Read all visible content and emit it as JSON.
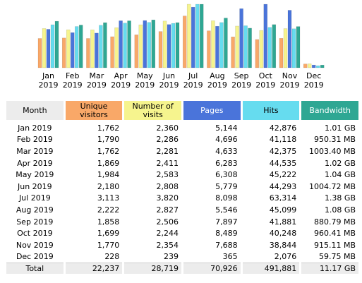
{
  "colors": {
    "unique_visitors": "#f9a868",
    "visits": "#f6f48e",
    "pages": "#4a74da",
    "hits": "#66dcef",
    "bandwidth": "#2ea793",
    "month_header": "#ececec"
  },
  "chart_data": {
    "type": "bar",
    "categories": [
      "Jan 2019",
      "Feb 2019",
      "Mar 2019",
      "Apr 2019",
      "May 2019",
      "Jun 2019",
      "Jul 2019",
      "Aug 2019",
      "Sep 2019",
      "Oct 2019",
      "Nov 2019",
      "Dec 2019"
    ],
    "category_lines": [
      [
        "Jan",
        "2019"
      ],
      [
        "Feb",
        "2019"
      ],
      [
        "Mar",
        "2019"
      ],
      [
        "Apr",
        "2019"
      ],
      [
        "May",
        "2019"
      ],
      [
        "Jun",
        "2019"
      ],
      [
        "Jul",
        "2019"
      ],
      [
        "Aug",
        "2019"
      ],
      [
        "Sep",
        "2019"
      ],
      [
        "Oct",
        "2019"
      ],
      [
        "Nov",
        "2019"
      ],
      [
        "Dec",
        "2019"
      ]
    ],
    "series": [
      {
        "name": "Unique visitors",
        "values": [
          1762,
          1790,
          1762,
          1869,
          1984,
          2180,
          3113,
          2222,
          1858,
          1699,
          1770,
          228
        ]
      },
      {
        "name": "Number of visits",
        "values": [
          2360,
          2286,
          2281,
          2411,
          2583,
          2808,
          3820,
          2827,
          2506,
          2244,
          2354,
          239
        ]
      },
      {
        "name": "Pages",
        "values": [
          5144,
          4696,
          4633,
          6283,
          6308,
          5779,
          8098,
          5546,
          7897,
          8489,
          7688,
          365
        ]
      },
      {
        "name": "Hits",
        "values": [
          42876,
          41118,
          42375,
          44535,
          45222,
          44293,
          63314,
          45099,
          41881,
          40248,
          38844,
          2076
        ]
      },
      {
        "name": "Bandwidth",
        "values": [
          1.01,
          0.928,
          0.98,
          1.02,
          1.04,
          0.981,
          1.38,
          1.08,
          0.86,
          0.938,
          0.895,
          0.058
        ]
      }
    ],
    "title": "",
    "xlabel": "",
    "ylabel": "",
    "grid": false,
    "legend": "none"
  },
  "table": {
    "headers": {
      "month": "Month",
      "unique": [
        "Unique",
        "visitors"
      ],
      "visits": [
        "Number of",
        "visits"
      ],
      "pages": "Pages",
      "hits": "Hits",
      "bandwidth": "Bandwidth"
    },
    "rows": [
      {
        "month": "Jan 2019",
        "unique": "1,762",
        "visits": "2,360",
        "pages": "5,144",
        "hits": "42,876",
        "bandwidth": "1.01 GB"
      },
      {
        "month": "Feb 2019",
        "unique": "1,790",
        "visits": "2,286",
        "pages": "4,696",
        "hits": "41,118",
        "bandwidth": "950.31 MB"
      },
      {
        "month": "Mar 2019",
        "unique": "1,762",
        "visits": "2,281",
        "pages": "4,633",
        "hits": "42,375",
        "bandwidth": "1003.40 MB"
      },
      {
        "month": "Apr 2019",
        "unique": "1,869",
        "visits": "2,411",
        "pages": "6,283",
        "hits": "44,535",
        "bandwidth": "1.02 GB"
      },
      {
        "month": "May 2019",
        "unique": "1,984",
        "visits": "2,583",
        "pages": "6,308",
        "hits": "45,222",
        "bandwidth": "1.04 GB"
      },
      {
        "month": "Jun 2019",
        "unique": "2,180",
        "visits": "2,808",
        "pages": "5,779",
        "hits": "44,293",
        "bandwidth": "1004.72 MB"
      },
      {
        "month": "Jul 2019",
        "unique": "3,113",
        "visits": "3,820",
        "pages": "8,098",
        "hits": "63,314",
        "bandwidth": "1.38 GB"
      },
      {
        "month": "Aug 2019",
        "unique": "2,222",
        "visits": "2,827",
        "pages": "5,546",
        "hits": "45,099",
        "bandwidth": "1.08 GB"
      },
      {
        "month": "Sep 2019",
        "unique": "1,858",
        "visits": "2,506",
        "pages": "7,897",
        "hits": "41,881",
        "bandwidth": "880.79 MB"
      },
      {
        "month": "Oct 2019",
        "unique": "1,699",
        "visits": "2,244",
        "pages": "8,489",
        "hits": "40,248",
        "bandwidth": "960.41 MB"
      },
      {
        "month": "Nov 2019",
        "unique": "1,770",
        "visits": "2,354",
        "pages": "7,688",
        "hits": "38,844",
        "bandwidth": "915.11 MB"
      },
      {
        "month": "Dec 2019",
        "unique": "228",
        "visits": "239",
        "pages": "365",
        "hits": "2,076",
        "bandwidth": "59.75 MB"
      }
    ],
    "total": {
      "month": "Total",
      "unique": "22,237",
      "visits": "28,719",
      "pages": "70,926",
      "hits": "491,881",
      "bandwidth": "11.17 GB"
    }
  }
}
